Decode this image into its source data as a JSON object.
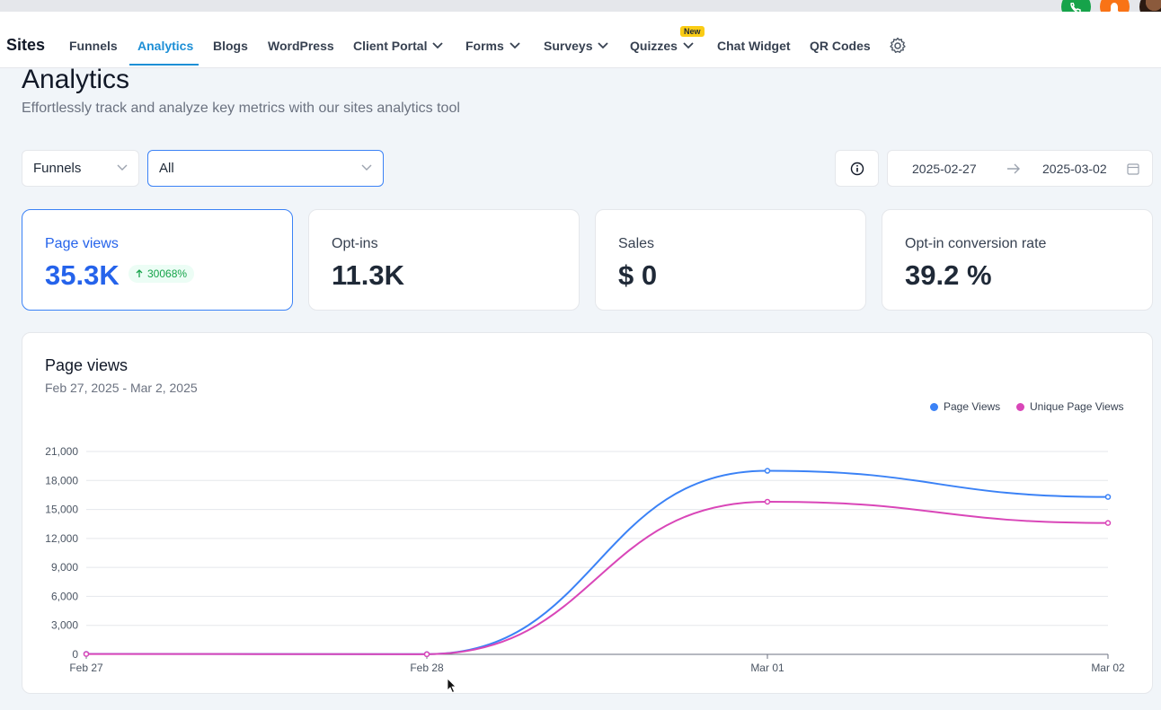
{
  "nav": {
    "brand": "Sites",
    "items": [
      {
        "label": "Funnels"
      },
      {
        "label": "Analytics",
        "active": true
      },
      {
        "label": "Blogs"
      },
      {
        "label": "WordPress"
      },
      {
        "label": "Client Portal",
        "dropdown": true
      },
      {
        "label": "Forms",
        "dropdown": true
      },
      {
        "label": "Surveys",
        "dropdown": true
      },
      {
        "label": "Quizzes",
        "dropdown": true,
        "badge": "New"
      },
      {
        "label": "Chat Widget"
      },
      {
        "label": "QR Codes"
      }
    ],
    "settings_icon": "gear-icon"
  },
  "header": {
    "title": "Analytics",
    "subtitle": "Effortlessly track and analyze key metrics with our sites analytics tool"
  },
  "filters": {
    "type_select": "Funnels",
    "item_select": "All",
    "date_from": "2025-02-27",
    "date_to": "2025-03-02"
  },
  "stats": [
    {
      "label": "Page views",
      "value": "35.3K",
      "trend": "30068%",
      "active": true
    },
    {
      "label": "Opt-ins",
      "value": "11.3K"
    },
    {
      "label": "Sales",
      "value": "$ 0"
    },
    {
      "label": "Opt-in conversion rate",
      "value": "39.2 %"
    }
  ],
  "colors": {
    "accent": "#2563eb",
    "page_views": "#3b82f6",
    "unique_page_views": "#d946b8",
    "success": "#16a34a"
  },
  "chart_data": {
    "type": "line",
    "title": "Page views",
    "subtitle": "Feb 27, 2025 - Mar 2, 2025",
    "categories": [
      "Feb 27",
      "Feb 28",
      "Mar 01",
      "Mar 02"
    ],
    "series": [
      {
        "name": "Page Views",
        "values": [
          50,
          20,
          19000,
          16300
        ]
      },
      {
        "name": "Unique Page Views",
        "values": [
          40,
          15,
          15800,
          13600
        ]
      }
    ],
    "yticks": [
      "0",
      "3,000",
      "6,000",
      "9,000",
      "12,000",
      "15,000",
      "18,000",
      "21,000"
    ],
    "ylim": [
      0,
      21000
    ],
    "legend": "top-right",
    "grid": true
  }
}
